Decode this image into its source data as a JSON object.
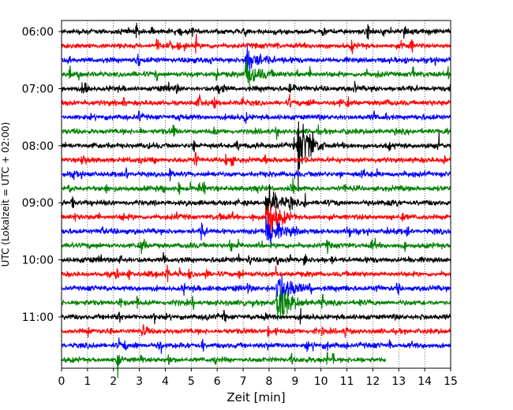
{
  "chart_data": {
    "type": "line",
    "subtype": "helicorder",
    "title": "",
    "xlabel": "Zeit  [min]",
    "ylabel": "UTC (Lokalzeit = UTC + 02:00)",
    "xlim": [
      0,
      15
    ],
    "x_ticks": [
      0,
      1,
      2,
      3,
      4,
      5,
      6,
      7,
      8,
      9,
      10,
      11,
      12,
      13,
      14,
      15
    ],
    "x_tick_labels": [
      "0",
      "1",
      "2",
      "3",
      "4",
      "5",
      "6",
      "7",
      "8",
      "9",
      "10",
      "11",
      "12",
      "13",
      "14",
      "15"
    ],
    "row_minutes": 15,
    "rows": 24,
    "last_row_end_min": 12.5,
    "y_tick_labels": [
      {
        "row": 0,
        "label": "06:00"
      },
      {
        "row": 4,
        "label": "07:00"
      },
      {
        "row": 8,
        "label": "08:00"
      },
      {
        "row": 12,
        "label": "09:00"
      },
      {
        "row": 16,
        "label": "10:00"
      },
      {
        "row": 20,
        "label": "11:00"
      }
    ],
    "color_cycle": [
      "#000000",
      "#ff0000",
      "#0000ff",
      "#008000"
    ],
    "vertical_grid": "dotted",
    "events": [
      {
        "row": 8,
        "min": 9.1,
        "amp": 1.8,
        "note": "strong local event"
      },
      {
        "row": 12,
        "min": 7.9,
        "amp": 1.2
      },
      {
        "row": 13,
        "min": 7.9,
        "amp": 1.4
      },
      {
        "row": 14,
        "min": 7.9,
        "amp": 1.3
      },
      {
        "row": 18,
        "min": 8.3,
        "amp": 1.4
      },
      {
        "row": 19,
        "min": 8.3,
        "amp": 1.5
      },
      {
        "row": 2,
        "min": 7.1,
        "amp": 0.9
      },
      {
        "row": 3,
        "min": 7.1,
        "amp": 0.9
      }
    ]
  }
}
